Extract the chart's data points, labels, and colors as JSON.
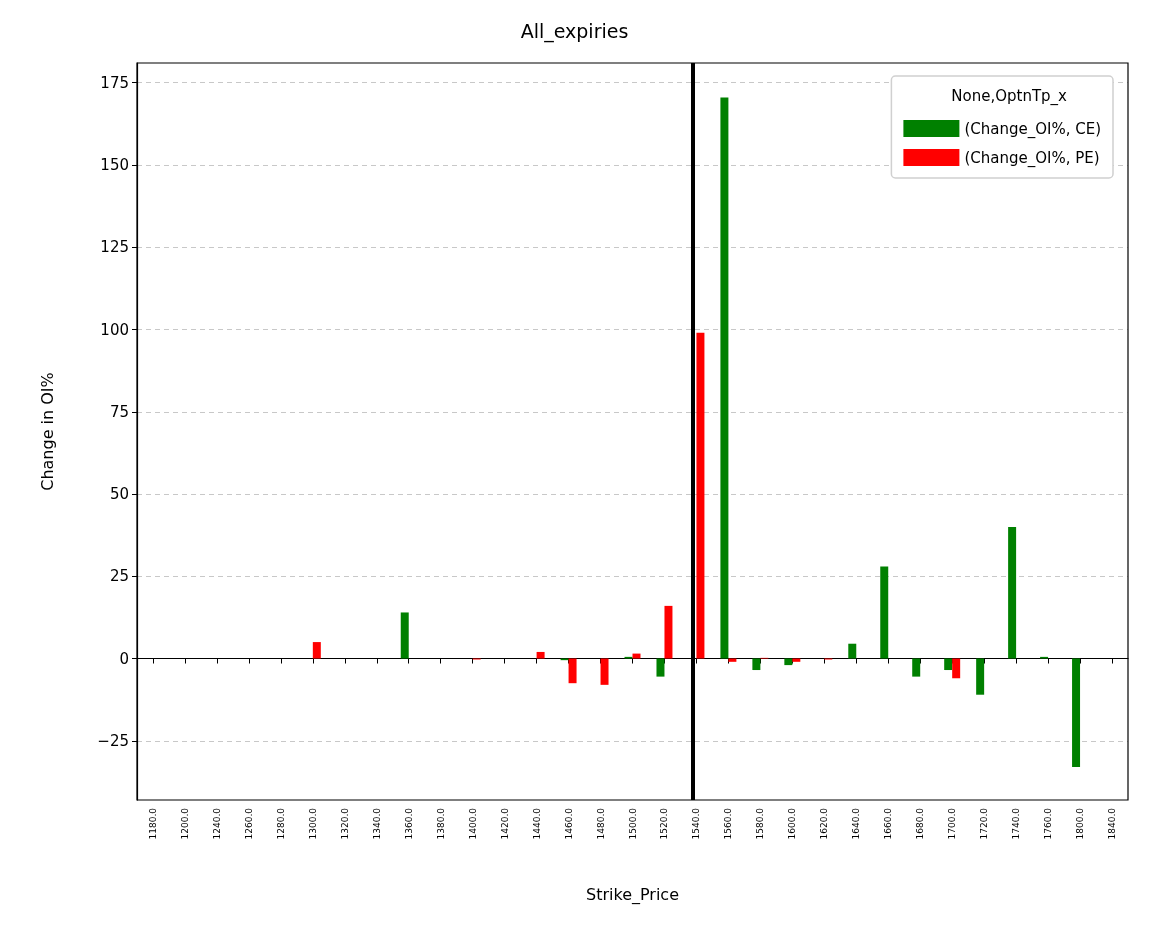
{
  "chart_data": {
    "type": "bar",
    "title": "All_expiries",
    "xlabel": "Strike_Price",
    "ylabel": "Change in OI%",
    "legend_title": "None,OptnTp_x",
    "categories": [
      "1180.0",
      "1200.0",
      "1240.0",
      "1260.0",
      "1280.0",
      "1300.0",
      "1320.0",
      "1340.0",
      "1360.0",
      "1380.0",
      "1400.0",
      "1420.0",
      "1440.0",
      "1460.0",
      "1480.0",
      "1500.0",
      "1520.0",
      "1540.0",
      "1560.0",
      "1580.0",
      "1600.0",
      "1620.0",
      "1640.0",
      "1660.0",
      "1680.0",
      "1700.0",
      "1720.0",
      "1740.0",
      "1760.0",
      "1800.0",
      "1840.0"
    ],
    "series": [
      {
        "name": "(Change_OI%, CE)",
        "color": "#008000",
        "values": [
          0,
          0,
          0,
          0,
          0,
          0,
          0,
          0,
          14,
          0,
          0,
          0,
          0,
          -0.5,
          0,
          0.5,
          -5.5,
          null,
          170.5,
          -3.5,
          -2,
          0,
          4.5,
          28,
          -5.5,
          -3.5,
          -11,
          40,
          0.5,
          -33,
          0
        ]
      },
      {
        "name": "(Change_OI%, PE)",
        "color": "#ff0000",
        "values": [
          0,
          0,
          0,
          0,
          0,
          5,
          0,
          0,
          0,
          0,
          -0.3,
          0,
          2,
          -7.5,
          -8,
          1.5,
          16,
          99,
          -1,
          0.2,
          -1,
          -0.3,
          0,
          0,
          0,
          -6,
          0,
          0,
          0,
          0,
          0
        ]
      }
    ],
    "ylim": [
      -43,
      181
    ],
    "yticks": [
      -25,
      0,
      25,
      50,
      75,
      100,
      125,
      150,
      175
    ],
    "grid": "y",
    "legend": "top right",
    "ref_lines": [
      {
        "axis": "x",
        "value": "1540.0",
        "color": "#000000",
        "line_style": "solid"
      }
    ]
  }
}
